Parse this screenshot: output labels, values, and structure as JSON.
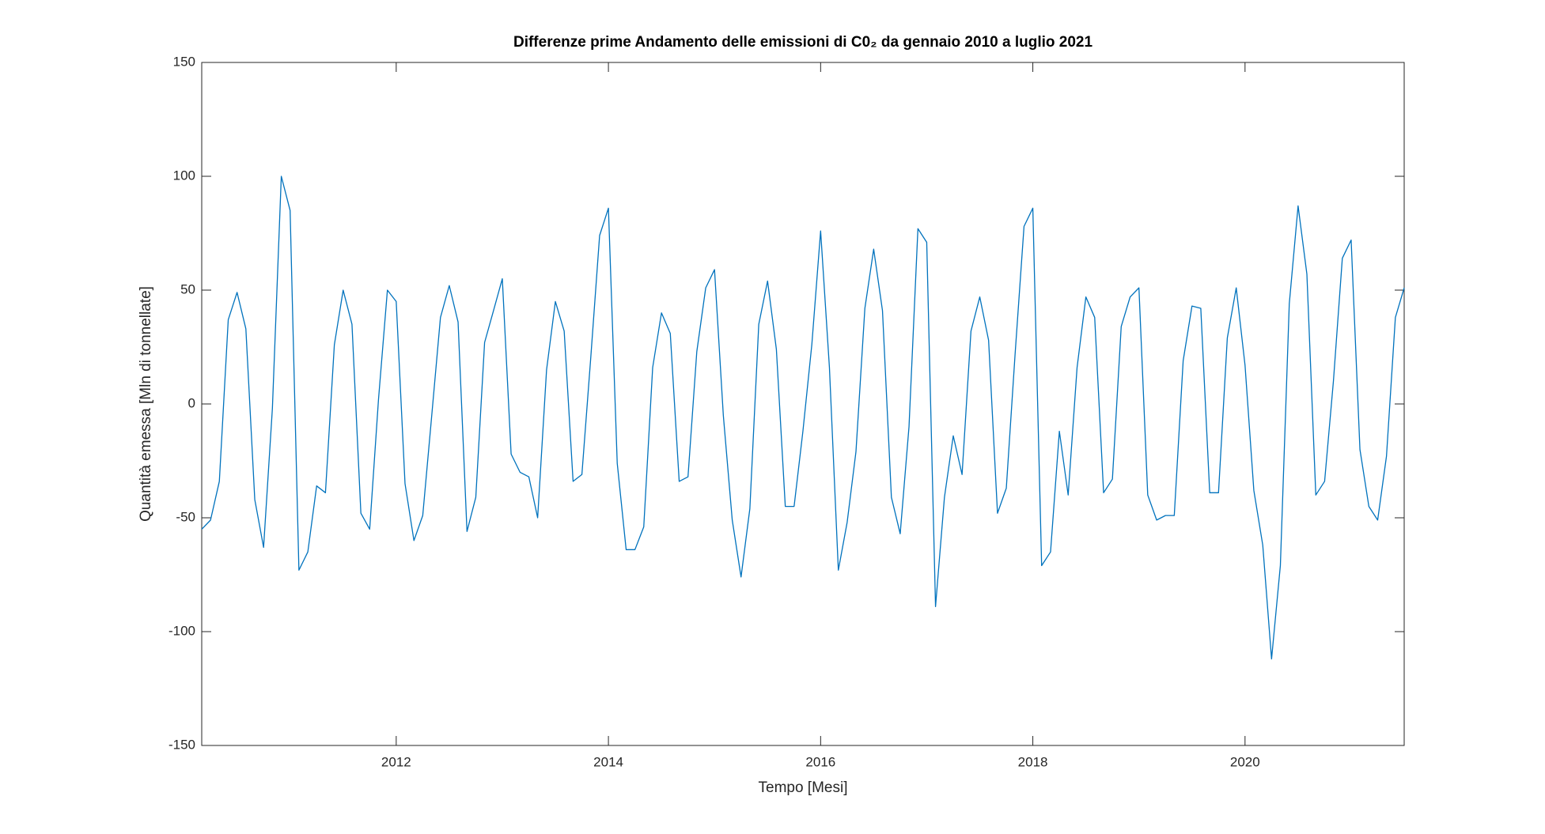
{
  "chart_data": {
    "type": "line",
    "title": "Differenze prime Andamento delle emissioni di C0₂ da gennaio 2010 a luglio 2021",
    "xlabel": "Tempo [Mesi]",
    "ylabel": "Quantità emessa [Mln di tonnellate]",
    "color": "#0072bd",
    "x": [
      2010.167,
      2010.25,
      2010.333,
      2010.417,
      2010.5,
      2010.583,
      2010.667,
      2010.75,
      2010.833,
      2010.917,
      2011.0,
      2011.083,
      2011.167,
      2011.25,
      2011.333,
      2011.417,
      2011.5,
      2011.583,
      2011.667,
      2011.75,
      2011.833,
      2011.917,
      2012.0,
      2012.083,
      2012.167,
      2012.25,
      2012.333,
      2012.417,
      2012.5,
      2012.583,
      2012.667,
      2012.75,
      2012.833,
      2012.917,
      2013.0,
      2013.083,
      2013.167,
      2013.25,
      2013.333,
      2013.417,
      2013.5,
      2013.583,
      2013.667,
      2013.75,
      2013.833,
      2013.917,
      2014.0,
      2014.083,
      2014.167,
      2014.25,
      2014.333,
      2014.417,
      2014.5,
      2014.583,
      2014.667,
      2014.75,
      2014.833,
      2014.917,
      2015.0,
      2015.083,
      2015.167,
      2015.25,
      2015.333,
      2015.417,
      2015.5,
      2015.583,
      2015.667,
      2015.75,
      2015.833,
      2015.917,
      2016.0,
      2016.083,
      2016.167,
      2016.25,
      2016.333,
      2016.417,
      2016.5,
      2016.583,
      2016.667,
      2016.75,
      2016.833,
      2016.917,
      2017.0,
      2017.083,
      2017.167,
      2017.25,
      2017.333,
      2017.417,
      2017.5,
      2017.583,
      2017.667,
      2017.75,
      2017.833,
      2017.917,
      2018.0,
      2018.083,
      2018.167,
      2018.25,
      2018.333,
      2018.417,
      2018.5,
      2018.583,
      2018.667,
      2018.75,
      2018.833,
      2018.917,
      2019.0,
      2019.083,
      2019.167,
      2019.25,
      2019.333,
      2019.417,
      2019.5,
      2019.583,
      2019.667,
      2019.75,
      2019.833,
      2019.917,
      2020.0,
      2020.083,
      2020.167,
      2020.25,
      2020.333,
      2020.417,
      2020.5,
      2020.583,
      2020.667,
      2020.75,
      2020.833,
      2020.917,
      2021.0,
      2021.083,
      2021.167,
      2021.25,
      2021.333,
      2021.417,
      2021.5
    ],
    "values": [
      -55,
      -51,
      -34,
      37,
      49,
      33,
      -42,
      -63,
      -2,
      100,
      85,
      -73,
      -65,
      -36,
      -39,
      26,
      50,
      35,
      -48,
      -55,
      2,
      50,
      45,
      -35,
      -60,
      -49,
      -6,
      38,
      52,
      36,
      -56,
      -41,
      27,
      41,
      55,
      -22,
      -30,
      -32,
      -50,
      15,
      45,
      32,
      -34,
      -31,
      20,
      74,
      86,
      -26,
      -64,
      -64,
      -54,
      16,
      40,
      31,
      -34,
      -32,
      23,
      51,
      59,
      -5,
      -51,
      -76,
      -46,
      35,
      54,
      24,
      -45,
      -45,
      -12,
      26,
      76,
      16,
      -73,
      -52,
      -21,
      42,
      68,
      41,
      -41,
      -57,
      -10,
      77,
      71,
      -89,
      -41,
      -14,
      -31,
      32,
      47,
      28,
      -48,
      -37,
      22,
      78,
      86,
      -71,
      -65,
      -12,
      -40,
      16,
      47,
      38,
      -39,
      -33,
      34,
      47,
      51,
      -40,
      -51,
      -49,
      -49,
      19,
      43,
      42,
      -39,
      -39,
      29,
      51,
      17,
      -38,
      -62,
      -112,
      -71,
      44,
      87,
      57,
      -40,
      -34,
      10,
      64,
      72,
      -20,
      -45,
      -51,
      -23,
      38,
      51
    ],
    "xlim": [
      2010.167,
      2021.5
    ],
    "xticks": [
      2012,
      2014,
      2016,
      2018,
      2020
    ],
    "ylim": [
      -150,
      150
    ],
    "yticks": [
      -150,
      -100,
      -50,
      0,
      50,
      100,
      150
    ]
  }
}
